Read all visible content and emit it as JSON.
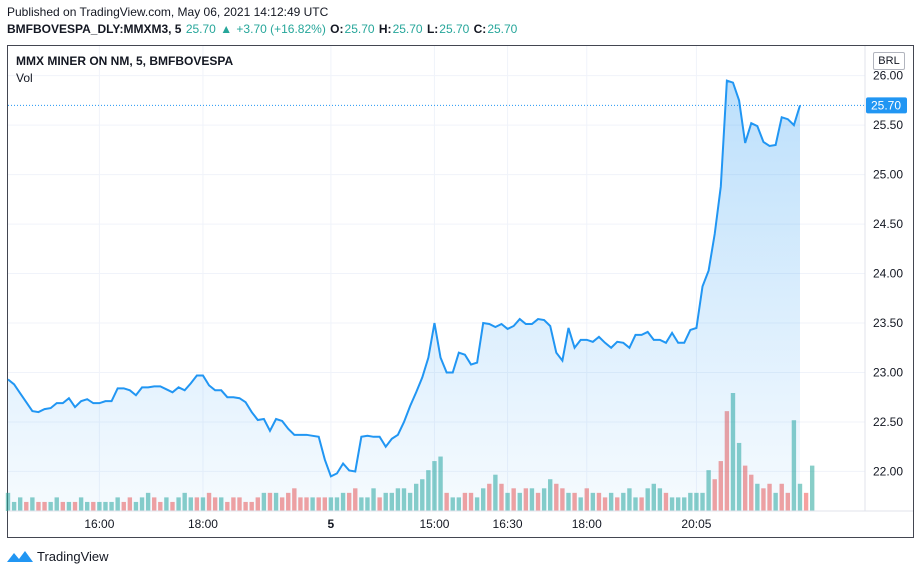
{
  "header": {
    "published": "Published on TradingView.com, May 06, 2021 14:12:49 UTC",
    "symbol": "BMFBOVESPA_DLY:MMXM3, 5",
    "last": "25.70",
    "arrow": "▲",
    "change": "+3.70 (+16.82%)",
    "o_label": "O:",
    "o": "25.70",
    "h_label": "H:",
    "h": "25.70",
    "l_label": "L:",
    "l": "25.70",
    "c_label": "C:",
    "c": "25.70"
  },
  "pane": {
    "title": "MMX MINER ON NM, 5, BMFBOVESPA",
    "vol_label": "Vol",
    "currency": "BRL",
    "last_price_label": "25.70"
  },
  "footer": {
    "brand": "TradingView"
  },
  "colors": {
    "line": "#2196f3",
    "area": "#2196f3",
    "vol_up": "#26a69a",
    "vol_down": "#ef5350",
    "last_label": "#2196f3",
    "up_text": "#26a69a"
  },
  "chart_data": {
    "type": "area",
    "title": "MMX MINER ON NM, 5, BMFBOVESPA",
    "ylim": [
      21.6,
      26.3
    ],
    "yticks": [
      "26.00",
      "25.50",
      "25.00",
      "24.50",
      "24.00",
      "23.50",
      "23.00",
      "22.50",
      "22.00"
    ],
    "ytick_values": [
      26.0,
      25.5,
      25.0,
      24.5,
      24.0,
      23.5,
      23.0,
      22.5,
      22.0
    ],
    "xticks": [
      "16:00",
      "18:00",
      "5",
      "15:00",
      "16:30",
      "18:00",
      "20:05"
    ],
    "xtick_index": [
      15,
      32,
      53,
      70,
      82,
      95,
      113
    ],
    "last_value": 25.7,
    "grid": true,
    "series": [
      {
        "values": [
          22.93,
          22.88,
          22.79,
          22.7,
          22.61,
          22.6,
          22.63,
          22.64,
          22.69,
          22.69,
          22.74,
          22.65,
          22.71,
          22.73,
          22.69,
          22.69,
          22.71,
          22.71,
          22.84,
          22.84,
          22.82,
          22.77,
          22.85,
          22.85,
          22.86,
          22.86,
          22.83,
          22.8,
          22.85,
          22.82,
          22.89,
          22.97,
          22.97,
          22.87,
          22.82,
          22.82,
          22.75,
          22.75,
          22.74,
          22.7,
          22.6,
          22.52,
          22.53,
          22.41,
          22.53,
          22.51,
          22.43,
          22.37,
          22.37,
          22.37,
          22.36,
          22.35,
          22.12,
          21.95,
          21.98,
          22.08,
          22.01,
          22.0,
          22.35,
          22.36,
          22.35,
          22.35,
          22.25,
          22.33,
          22.37,
          22.5,
          22.66,
          22.8,
          22.95,
          23.15,
          23.5,
          23.15,
          23.0,
          23.0,
          23.2,
          23.18,
          23.08,
          23.1,
          23.5,
          23.49,
          23.46,
          23.49,
          23.44,
          23.47,
          23.54,
          23.49,
          23.49,
          23.54,
          23.53,
          23.47,
          23.2,
          23.12,
          23.45,
          23.25,
          23.33,
          23.33,
          23.31,
          23.36,
          23.3,
          23.25,
          23.31,
          23.3,
          23.25,
          23.38,
          23.38,
          23.41,
          23.33,
          23.33,
          23.3,
          23.4,
          23.3,
          23.3,
          23.43,
          23.45,
          23.87,
          24.03,
          24.4,
          24.88,
          25.95,
          25.93,
          25.75,
          25.32,
          25.52,
          25.49,
          25.33,
          25.29,
          25.3,
          25.58,
          25.56,
          25.5,
          25.7
        ]
      }
    ],
    "volume": {
      "values": [
        4,
        2,
        3,
        2,
        3,
        2,
        2,
        2,
        3,
        2,
        2,
        2,
        3,
        2,
        2,
        2,
        2,
        2,
        3,
        2,
        3,
        2,
        3,
        4,
        3,
        2,
        3,
        2,
        3,
        4,
        3,
        3,
        3,
        4,
        3,
        3,
        2,
        3,
        3,
        2,
        2,
        3,
        4,
        4,
        4,
        3,
        4,
        5,
        3,
        3,
        3,
        3,
        3,
        3,
        3,
        4,
        4,
        5,
        3,
        3,
        5,
        3,
        4,
        4,
        5,
        5,
        4,
        6,
        7,
        9,
        11,
        12,
        4,
        3,
        3,
        4,
        4,
        3,
        5,
        6,
        8,
        6,
        4,
        5,
        4,
        5,
        5,
        4,
        5,
        7,
        6,
        5,
        4,
        4,
        3,
        5,
        4,
        4,
        3,
        4,
        3,
        4,
        5,
        3,
        3,
        5,
        6,
        5,
        4,
        3,
        3,
        3,
        4,
        4,
        4,
        9,
        7,
        11,
        22,
        26,
        15,
        10,
        8,
        6,
        5,
        6,
        4,
        6,
        4,
        20,
        6,
        4,
        10
      ],
      "up": [
        1,
        1,
        1,
        0,
        1,
        0,
        0,
        1,
        1,
        0,
        1,
        0,
        1,
        1,
        0,
        1,
        1,
        1,
        1,
        0,
        0,
        1,
        1,
        1,
        0,
        0,
        1,
        0,
        1,
        1,
        1,
        0,
        1,
        0,
        0,
        1,
        0,
        0,
        0,
        0,
        0,
        0,
        1,
        0,
        1,
        0,
        0,
        0,
        0,
        0,
        1,
        0,
        0,
        1,
        1,
        1,
        0,
        0,
        1,
        1,
        1,
        0,
        1,
        1,
        1,
        1,
        1,
        1,
        1,
        1,
        1,
        1,
        0,
        1,
        1,
        0,
        0,
        1,
        1,
        0,
        1,
        0,
        1,
        0,
        1,
        0,
        1,
        0,
        1,
        1,
        0,
        0,
        1,
        0,
        1,
        0,
        1,
        0,
        0,
        1,
        0,
        1,
        1,
        1,
        0,
        1,
        1,
        1,
        0,
        1,
        1,
        1,
        1,
        1,
        1,
        1,
        0,
        0,
        0,
        1,
        1,
        0,
        0,
        1,
        0,
        0,
        1,
        0,
        0,
        1,
        1,
        0,
        1
      ]
    }
  }
}
